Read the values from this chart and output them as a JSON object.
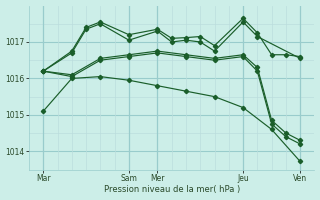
{
  "title": "",
  "xlabel": "Pression niveau de la mer( hPa )",
  "ylabel": "",
  "bg_color": "#cceee8",
  "grid_color_major": "#99cccc",
  "grid_color_minor": "#bbdddd",
  "line_color": "#1a5e2a",
  "xlim": [
    0,
    10
  ],
  "ylim": [
    1013.5,
    1018.0
  ],
  "yticks": [
    1014,
    1015,
    1016,
    1017
  ],
  "xtick_positions": [
    0.5,
    3.5,
    4.5,
    7.5,
    9.5
  ],
  "xtick_labels": [
    "Mar",
    "Sam",
    "Mer",
    "Jeu",
    "Ven"
  ],
  "vlines_major": [
    0.5,
    3.5,
    4.5,
    7.5,
    9.5
  ],
  "vlines_minor": [
    1.0,
    1.5,
    2.0,
    2.5,
    3.0,
    5.0,
    5.5,
    6.0,
    6.5,
    7.0,
    8.0,
    8.5,
    9.0
  ],
  "hlines_minor": [
    1014.5,
    1015.5,
    1016.5,
    1017.5
  ],
  "series": [
    {
      "x": [
        0.5,
        1.5,
        2.0,
        2.5,
        3.5,
        4.5,
        5.0,
        5.5,
        6.0,
        6.5,
        7.5,
        8.0,
        8.5,
        9.0,
        9.5
      ],
      "y": [
        1016.2,
        1016.75,
        1017.4,
        1017.55,
        1017.2,
        1017.35,
        1017.1,
        1017.12,
        1017.15,
        1016.9,
        1017.65,
        1017.25,
        1016.65,
        1016.65,
        1016.6
      ]
    },
    {
      "x": [
        0.5,
        1.5,
        2.0,
        2.5,
        3.5,
        4.5,
        5.0,
        5.5,
        6.0,
        6.5,
        7.5,
        8.0,
        9.5
      ],
      "y": [
        1016.2,
        1016.7,
        1017.35,
        1017.5,
        1017.05,
        1017.3,
        1017.0,
        1017.05,
        1017.0,
        1016.75,
        1017.55,
        1017.15,
        1016.55
      ]
    },
    {
      "x": [
        0.5,
        1.5,
        2.5,
        3.5,
        4.5,
        5.5,
        6.5,
        7.5,
        8.0,
        8.5,
        9.0,
        9.5
      ],
      "y": [
        1016.2,
        1016.1,
        1016.55,
        1016.65,
        1016.75,
        1016.65,
        1016.55,
        1016.65,
        1016.3,
        1014.85,
        1014.5,
        1014.3
      ]
    },
    {
      "x": [
        0.5,
        1.5,
        2.5,
        3.5,
        4.5,
        5.5,
        6.5,
        7.5,
        8.0,
        8.5,
        9.0,
        9.5
      ],
      "y": [
        1016.2,
        1016.05,
        1016.5,
        1016.6,
        1016.7,
        1016.6,
        1016.5,
        1016.6,
        1016.2,
        1014.75,
        1014.4,
        1014.2
      ]
    },
    {
      "x": [
        0.5,
        1.5,
        2.5,
        3.5,
        4.5,
        5.5,
        6.5,
        7.5,
        8.5,
        9.5
      ],
      "y": [
        1015.1,
        1016.0,
        1016.05,
        1015.95,
        1015.8,
        1015.65,
        1015.5,
        1015.2,
        1014.6,
        1013.72
      ]
    }
  ]
}
